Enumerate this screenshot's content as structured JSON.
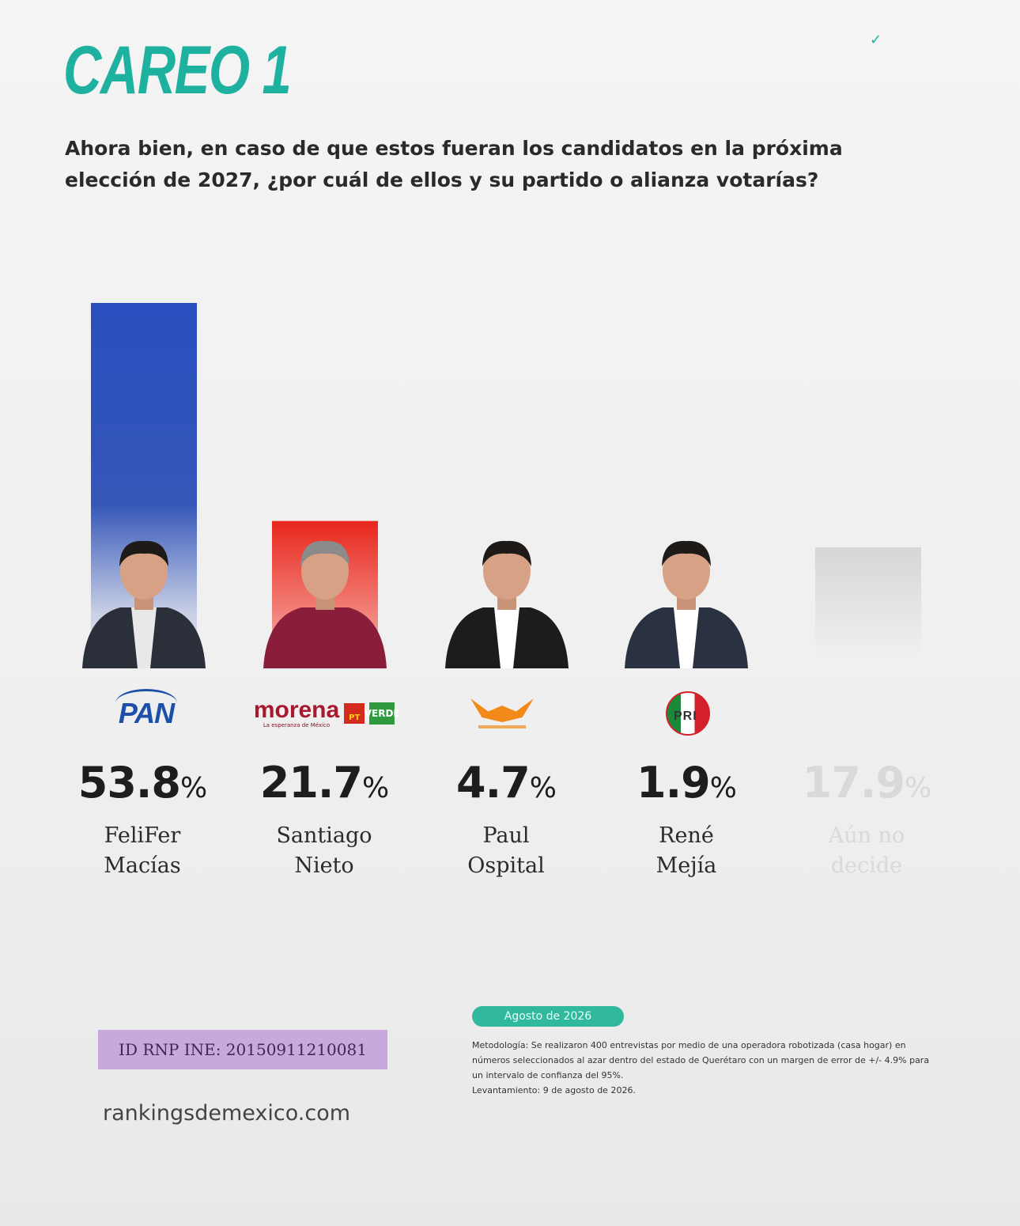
{
  "header": {
    "title": "CAREO 1",
    "question": "Ahora bien, en caso de que estos fueran los candidatos en la próxima elección de 2027, ¿por cuál de ellos y su partido o alianza votarías?"
  },
  "colors": {
    "accent": "#1fb1a0",
    "pan": "#1b4fa8",
    "morena": "#d52b1e",
    "mc": "#f28a1a",
    "pri": "#1a3a6e",
    "undecided": "#d8d8d8"
  },
  "chart_data": {
    "type": "bar",
    "categories": [
      "FeliFer Macías",
      "Santiago Nieto",
      "Paul Ospital",
      "René Mejía",
      "Aún no decide"
    ],
    "parties": [
      "PAN",
      "morena PT PVEM",
      "Movimiento Ciudadano",
      "PRI",
      ""
    ],
    "values": [
      53.8,
      21.7,
      4.7,
      1.9,
      17.9
    ],
    "unit": "%",
    "ylim": [
      0,
      60
    ],
    "legend": "none",
    "grid": false
  },
  "candidates": [
    {
      "pct": "53.8",
      "unit": "%",
      "first": "FeliFer",
      "last": "Macías"
    },
    {
      "pct": "21.7",
      "unit": "%",
      "first": "Santiago",
      "last": "Nieto"
    },
    {
      "pct": "4.7",
      "unit": "%",
      "first": "Paul",
      "last": "Ospital"
    },
    {
      "pct": "1.9",
      "unit": "%",
      "first": "René",
      "last": "Mejía"
    },
    {
      "pct": "17.9",
      "unit": "%",
      "first": "Aún no",
      "last": "decide"
    }
  ],
  "logos": {
    "pan": "PAN",
    "morena": "morena",
    "morena_sub": "La esperanza de México",
    "pt": "PT",
    "verde": "VERDE",
    "pri": "PRI"
  },
  "footer": {
    "rnp": "ID RNP INE: 20150911210081",
    "site": "rankingsdemexico.com",
    "date_badge": "Agosto de 2026",
    "methodology": "Metodología: Se realizaron 400 entrevistas por medio de una operadora robotizada (casa hogar) en números seleccionados al azar dentro del estado de Querétaro con un margen de error de +/- 4.9% para un intervalo de confianza del 95%.",
    "survey_date": "Levantamiento: 9 de agosto de 2026."
  }
}
